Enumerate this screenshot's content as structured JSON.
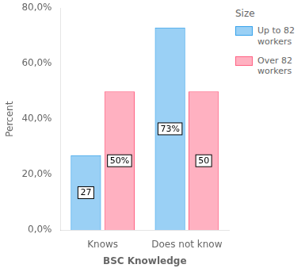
{
  "chart_data": {
    "type": "bar",
    "categories": [
      "Knows",
      "Does not know"
    ],
    "series": [
      {
        "name": "Up to 82\nworkers",
        "values": [
          27,
          73
        ],
        "value_labels": [
          "27",
          "73%"
        ]
      },
      {
        "name": "Over 82\nworkers",
        "values": [
          50,
          50
        ],
        "value_labels": [
          "50%",
          "50"
        ]
      }
    ],
    "xlabel": "BSC Knowledge",
    "ylabel": "Percent",
    "legend_title": "Size",
    "legend": "right",
    "ylim": [
      0,
      80
    ],
    "yticks": [
      {
        "value": 0,
        "label": "0,0%"
      },
      {
        "value": 20,
        "label": "20,0%"
      },
      {
        "value": 40,
        "label": "40,0%"
      },
      {
        "value": 60,
        "label": "60,0%"
      },
      {
        "value": 80,
        "label": "80,0%"
      }
    ],
    "grid": false,
    "data_labels": true
  }
}
